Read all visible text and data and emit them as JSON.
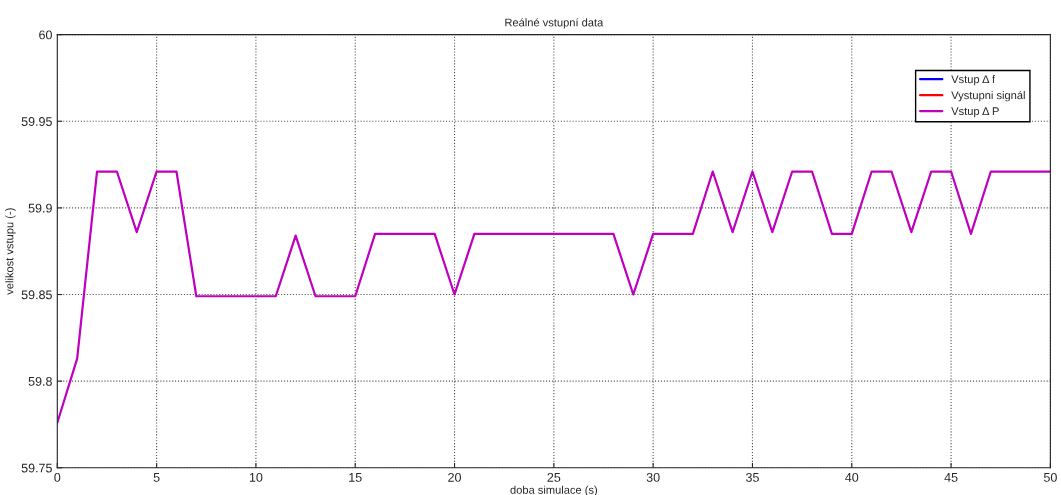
{
  "chart_data": {
    "type": "line",
    "title": "Reálné vstupní data",
    "xlabel": "doba simulace (s)",
    "ylabel": "velikost vstupu (-)",
    "x": [
      0,
      1,
      2,
      3,
      4,
      5,
      6,
      7,
      11,
      12,
      13,
      15,
      16,
      19,
      20,
      21,
      28,
      29,
      30,
      32,
      33,
      34,
      35,
      36,
      37,
      38,
      39,
      40,
      41,
      42,
      43,
      44,
      45,
      46,
      47,
      50
    ],
    "series": [
      {
        "name": "Vstup Δ f",
        "color": "#0000ff",
        "values": [
          null,
          null,
          null,
          null,
          null,
          null,
          null,
          null,
          null,
          null,
          null,
          null,
          null,
          null,
          null,
          null,
          null,
          null,
          null,
          null,
          null,
          null,
          null,
          null,
          null,
          null,
          null,
          null,
          null,
          null,
          null,
          null,
          null,
          null,
          null,
          null
        ]
      },
      {
        "name": "Vystupni signál",
        "color": "#ff0000",
        "values": [
          null,
          null,
          null,
          null,
          null,
          null,
          null,
          null,
          null,
          null,
          null,
          null,
          null,
          null,
          null,
          null,
          null,
          null,
          null,
          null,
          null,
          null,
          null,
          null,
          null,
          null,
          null,
          null,
          null,
          null,
          null,
          null,
          null,
          null,
          null,
          null
        ]
      },
      {
        "name": "Vstup Δ P",
        "color": "#bf00bf",
        "values": [
          59.776,
          59.813,
          59.921,
          59.921,
          59.886,
          59.921,
          59.921,
          59.849,
          59.849,
          59.884,
          59.849,
          59.849,
          59.885,
          59.885,
          59.85,
          59.885,
          59.885,
          59.85,
          59.885,
          59.885,
          59.921,
          59.886,
          59.921,
          59.886,
          59.921,
          59.921,
          59.885,
          59.885,
          59.921,
          59.921,
          59.886,
          59.921,
          59.921,
          59.885,
          59.921,
          59.921
        ]
      }
    ],
    "xlim": [
      0,
      50
    ],
    "xticks": [
      0,
      5,
      10,
      15,
      20,
      25,
      30,
      35,
      40,
      45,
      50
    ],
    "ylim": [
      59.75,
      60
    ],
    "yticks": [
      59.75,
      59.8,
      59.85,
      59.9,
      59.95,
      60
    ],
    "grid": true,
    "legend": "top right",
    "marker": "none",
    "line_style": "solid"
  }
}
